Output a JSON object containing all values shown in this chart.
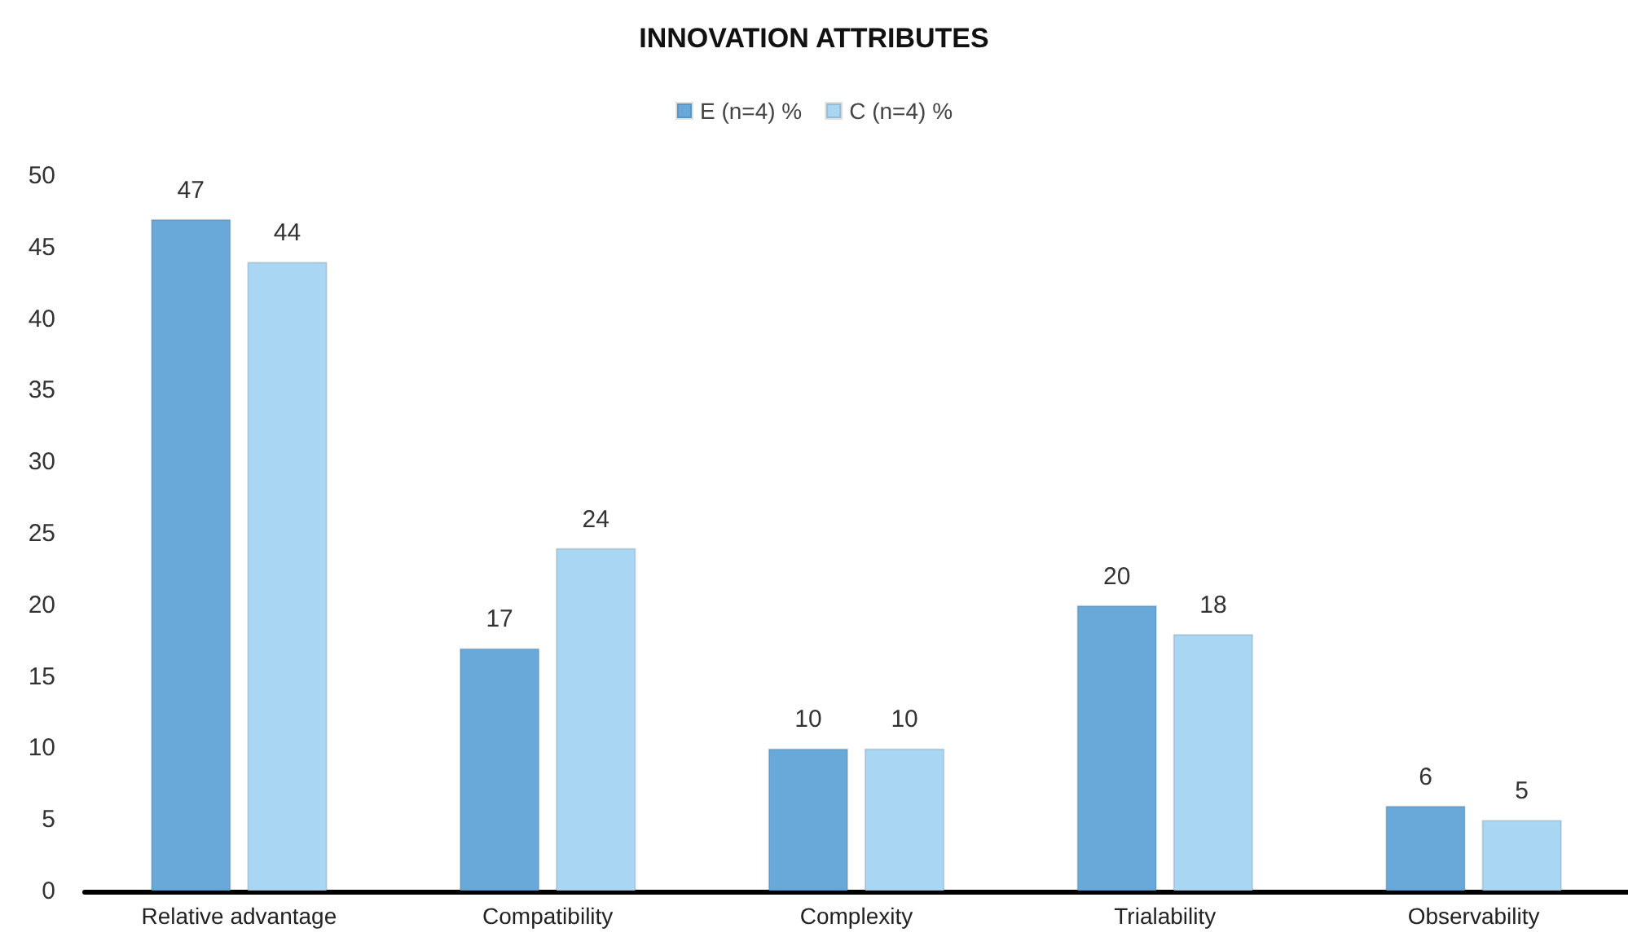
{
  "chart_data": {
    "type": "bar",
    "title": "INNOVATION ATTRIBUTES",
    "categories": [
      "Relative advantage",
      "Compatibility",
      "Complexity",
      "Trialability",
      "Observability"
    ],
    "series": [
      {
        "name": "E (n=4) %",
        "color": "#68a9d9",
        "values": [
          47,
          17,
          10,
          20,
          6
        ]
      },
      {
        "name": "C (n=4) %",
        "color": "#a9d7f3",
        "values": [
          44,
          24,
          10,
          18,
          5
        ]
      }
    ],
    "ylim": [
      0,
      50
    ],
    "yticks": [
      0,
      5,
      10,
      15,
      20,
      25,
      30,
      35,
      40,
      45,
      50
    ],
    "grid": false,
    "legend": "top",
    "data_labels": true
  }
}
